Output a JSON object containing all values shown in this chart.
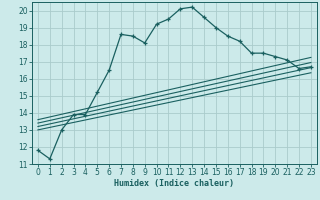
{
  "bg_color": "#cceaea",
  "grid_color": "#aacccc",
  "line_color": "#1a6060",
  "xlabel": "Humidex (Indice chaleur)",
  "ylim": [
    11,
    20.5
  ],
  "xlim": [
    -0.5,
    23.5
  ],
  "yticks": [
    11,
    12,
    13,
    14,
    15,
    16,
    17,
    18,
    19,
    20
  ],
  "xticks": [
    0,
    1,
    2,
    3,
    4,
    5,
    6,
    7,
    8,
    9,
    10,
    11,
    12,
    13,
    14,
    15,
    16,
    17,
    18,
    19,
    20,
    21,
    22,
    23
  ],
  "main_line": [
    [
      0,
      11.8
    ],
    [
      1,
      11.3
    ],
    [
      2,
      13.0
    ],
    [
      3,
      13.9
    ],
    [
      4,
      13.9
    ],
    [
      5,
      15.2
    ],
    [
      6,
      16.5
    ],
    [
      7,
      18.6
    ],
    [
      8,
      18.5
    ],
    [
      9,
      18.1
    ],
    [
      10,
      19.2
    ],
    [
      11,
      19.5
    ],
    [
      12,
      20.1
    ],
    [
      13,
      20.2
    ],
    [
      14,
      19.6
    ],
    [
      15,
      19.0
    ],
    [
      16,
      18.5
    ],
    [
      17,
      18.2
    ],
    [
      18,
      17.5
    ],
    [
      19,
      17.5
    ],
    [
      20,
      17.3
    ],
    [
      21,
      17.1
    ],
    [
      22,
      16.6
    ],
    [
      23,
      16.7
    ]
  ],
  "reg_lines": [
    [
      [
        0,
        13.6
      ],
      [
        23,
        17.25
      ]
    ],
    [
      [
        0,
        13.4
      ],
      [
        23,
        16.95
      ]
    ],
    [
      [
        0,
        13.2
      ],
      [
        23,
        16.65
      ]
    ],
    [
      [
        0,
        13.0
      ],
      [
        23,
        16.35
      ]
    ]
  ],
  "xlabel_fontsize": 6,
  "tick_fontsize": 5.5,
  "line_width": 0.9,
  "marker_size": 3
}
